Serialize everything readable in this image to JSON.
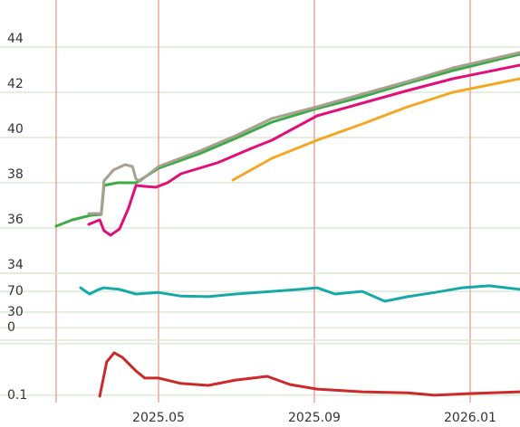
{
  "chart_data": [
    {
      "type": "line",
      "ylim": [
        34,
        46
      ],
      "yticks": [
        34,
        36,
        38,
        40,
        42,
        44
      ],
      "xlim": [
        0.93,
        14.28
      ],
      "grid": true,
      "series": [
        {
          "color": "#f5a623",
          "x": [
            6.91,
            7.91,
            9.07,
            10.23,
            11.4,
            12.56,
            14.28
          ],
          "values": [
            38.12,
            39.08,
            39.88,
            40.6,
            41.36,
            42.0,
            42.6
          ]
        },
        {
          "color": "#e0107a",
          "x": [
            3.21,
            3.49,
            3.6,
            3.77,
            4.0,
            4.23,
            4.42,
            4.65,
            4.93,
            5.23,
            5.58,
            6.51,
            7.44,
            7.91,
            9.07,
            10.23,
            11.4,
            12.56,
            14.28
          ],
          "values": [
            36.16,
            36.36,
            35.88,
            35.68,
            35.96,
            36.88,
            37.88,
            37.84,
            37.8,
            38.0,
            38.4,
            38.88,
            39.56,
            39.88,
            40.96,
            41.52,
            42.08,
            42.6,
            43.2
          ]
        },
        {
          "color": "#3daa48",
          "x": [
            2.37,
            2.79,
            3.26,
            3.53,
            3.6,
            3.95,
            4.42,
            5.0,
            6.05,
            6.98,
            7.91,
            9.07,
            10.23,
            11.4,
            12.56,
            14.28
          ],
          "values": [
            36.08,
            36.36,
            36.56,
            36.6,
            37.88,
            38.0,
            38.0,
            38.64,
            39.28,
            39.96,
            40.68,
            41.28,
            41.8,
            42.4,
            42.96,
            43.68
          ]
        },
        {
          "color": "#a8a090",
          "x": [
            3.21,
            3.53,
            3.6,
            3.84,
            4.14,
            4.33,
            4.42,
            4.53,
            5.0,
            6.05,
            6.98,
            7.91,
            9.07,
            10.23,
            11.4,
            12.56,
            14.28
          ],
          "values": [
            36.64,
            36.64,
            38.08,
            38.56,
            38.8,
            38.72,
            38.16,
            38.08,
            38.72,
            39.4,
            40.08,
            40.84,
            41.36,
            41.92,
            42.48,
            43.08,
            43.76
          ]
        }
      ]
    },
    {
      "type": "line",
      "ylim": [
        -20,
        100
      ],
      "yticks": [
        0,
        30,
        70
      ],
      "xlim": [
        0.93,
        14.28
      ],
      "grid": true,
      "series": [
        {
          "color": "#18a8a8",
          "x": [
            3.0,
            3.23,
            3.47,
            3.6,
            4.0,
            4.42,
            5.0,
            5.58,
            6.28,
            6.98,
            7.91,
            8.6,
            9.07,
            9.53,
            10.23,
            10.81,
            11.4,
            12.09,
            12.79,
            13.49,
            14.28
          ],
          "values": [
            77,
            65,
            74,
            77,
            74,
            65,
            68,
            61,
            60,
            65,
            70,
            74,
            77,
            65,
            70,
            51,
            60,
            68,
            77,
            81,
            74
          ]
        }
      ]
    },
    {
      "type": "line",
      "ylim": [
        0.07,
        0.31
      ],
      "yticks": [
        0.1
      ],
      "xlim": [
        0.93,
        14.28
      ],
      "grid": true,
      "xticks": [
        {
          "value": 2.37,
          "label": null
        },
        {
          "value": 5,
          "label": "2025.05"
        },
        {
          "value": 9,
          "label": "2025.09"
        },
        {
          "value": 13,
          "label": "2026.01"
        }
      ],
      "series": [
        {
          "color": "#cc2a2a",
          "x": [
            3.49,
            3.67,
            3.86,
            4.07,
            4.42,
            4.65,
            5.0,
            5.58,
            6.28,
            6.98,
            7.79,
            8.37,
            9.07,
            10.23,
            11.4,
            12.09,
            13.02,
            14.28
          ],
          "values": [
            0.096,
            0.236,
            0.273,
            0.255,
            0.199,
            0.17,
            0.17,
            0.148,
            0.14,
            0.162,
            0.177,
            0.144,
            0.125,
            0.114,
            0.11,
            0.1,
            0.107,
            0.114
          ]
        }
      ]
    }
  ]
}
